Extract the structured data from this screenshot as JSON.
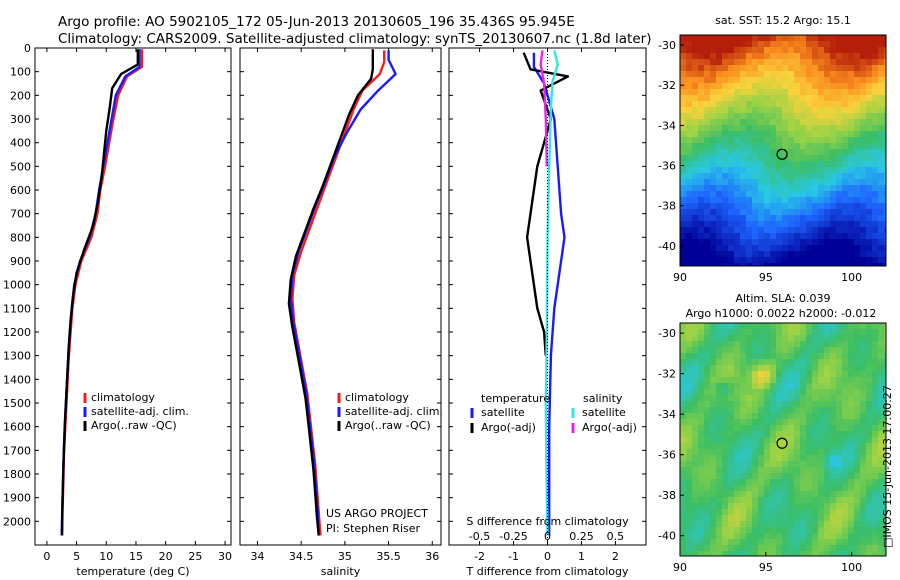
{
  "header": {
    "line1": "Argo profile: AO 5902105_172 05-Jun-2013 20130605_196 35.436S 95.945E",
    "line2": "Climatology: CARS2009. Satellite-adjusted climatology: synTS_20130607.nc (1.8d later)"
  },
  "colors": {
    "climatology": "#ff1a1a",
    "satellite": "#1a1aff",
    "argo": "#000000",
    "sal_satellite": "#33e6e6",
    "sal_argo": "#ee22ee"
  },
  "footer": {
    "project": "US ARGO PROJECT",
    "pi": "PI: Stephen Riser",
    "vertical_stamp": "□IMOS 15-Jun-2013 17:00:27"
  },
  "chart_data": [
    {
      "type": "line",
      "xlabel": "temperature (deg C)",
      "xlim": [
        -2,
        31
      ],
      "xticks": [
        0,
        5,
        10,
        15,
        20,
        25,
        30
      ],
      "ylim": [
        0,
        2100
      ],
      "yticks": [
        0,
        100,
        200,
        300,
        400,
        500,
        600,
        700,
        800,
        900,
        1000,
        1100,
        1200,
        1300,
        1400,
        1500,
        1600,
        1700,
        1800,
        1900,
        2000
      ],
      "legend": {
        "placement": "lower-center",
        "entries": [
          "climatology",
          "satellite-adj. clim.",
          "Argo(..raw -QC)"
        ]
      },
      "series": [
        {
          "name": "climatology",
          "color": "#ff1a1a",
          "points": [
            [
              16.0,
              5
            ],
            [
              16.0,
              80
            ],
            [
              13.5,
              120
            ],
            [
              12.0,
              200
            ],
            [
              11.2,
              300
            ],
            [
              10.5,
              400
            ],
            [
              9.8,
              500
            ],
            [
              9.0,
              600
            ],
            [
              8.5,
              700
            ],
            [
              7.5,
              800
            ],
            [
              5.8,
              900
            ],
            [
              4.8,
              1000
            ],
            [
              4.3,
              1100
            ],
            [
              4.0,
              1200
            ],
            [
              3.7,
              1300
            ],
            [
              3.5,
              1400
            ],
            [
              3.3,
              1500
            ],
            [
              3.1,
              1600
            ],
            [
              2.9,
              1700
            ],
            [
              2.8,
              1800
            ],
            [
              2.7,
              1900
            ],
            [
              2.6,
              2000
            ],
            [
              2.55,
              2060
            ]
          ]
        },
        {
          "name": "satellite-adj. clim.",
          "color": "#1a1aff",
          "points": [
            [
              15.6,
              5
            ],
            [
              15.6,
              80
            ],
            [
              13.2,
              120
            ],
            [
              11.6,
              200
            ],
            [
              10.9,
              300
            ],
            [
              10.2,
              400
            ],
            [
              9.5,
              500
            ],
            [
              8.8,
              600
            ],
            [
              8.2,
              700
            ],
            [
              7.2,
              800
            ],
            [
              5.6,
              900
            ],
            [
              4.6,
              1000
            ],
            [
              4.2,
              1100
            ],
            [
              3.9,
              1200
            ],
            [
              3.6,
              1300
            ],
            [
              3.4,
              1400
            ],
            [
              3.2,
              1500
            ],
            [
              3.0,
              1600
            ],
            [
              2.85,
              1700
            ],
            [
              2.75,
              1800
            ],
            [
              2.65,
              1900
            ],
            [
              2.55,
              2000
            ],
            [
              2.5,
              2060
            ]
          ]
        },
        {
          "name": "Argo(..raw -QC)",
          "color": "#000000",
          "points": [
            [
              15.3,
              5
            ],
            [
              15.3,
              70
            ],
            [
              12.5,
              110
            ],
            [
              11.0,
              170
            ],
            [
              10.6,
              250
            ],
            [
              10.0,
              350
            ],
            [
              9.6,
              450
            ],
            [
              9.2,
              550
            ],
            [
              8.6,
              650
            ],
            [
              7.8,
              750
            ],
            [
              6.3,
              850
            ],
            [
              5.0,
              950
            ],
            [
              4.4,
              1050
            ],
            [
              4.0,
              1150
            ],
            [
              3.7,
              1250
            ],
            [
              3.5,
              1350
            ],
            [
              3.3,
              1450
            ],
            [
              3.1,
              1550
            ],
            [
              2.95,
              1650
            ],
            [
              2.8,
              1750
            ],
            [
              2.7,
              1850
            ],
            [
              2.6,
              1950
            ],
            [
              2.55,
              2060
            ]
          ]
        }
      ]
    },
    {
      "type": "line",
      "xlabel": "salinity",
      "xlim": [
        33.8,
        36.1
      ],
      "xticks": [
        34,
        34.5,
        35,
        35.5,
        36
      ],
      "ylim": [
        0,
        2100
      ],
      "legend": {
        "placement": "lower-right",
        "entries": [
          "climatology",
          "satellite-adj. clim.",
          "Argo(..raw -QC)"
        ]
      },
      "series": [
        {
          "name": "climatology",
          "color": "#ff1a1a",
          "points": [
            [
              35.45,
              10
            ],
            [
              35.45,
              60
            ],
            [
              35.4,
              110
            ],
            [
              35.2,
              180
            ],
            [
              35.1,
              260
            ],
            [
              35.0,
              360
            ],
            [
              34.9,
              460
            ],
            [
              34.8,
              560
            ],
            [
              34.7,
              660
            ],
            [
              34.6,
              760
            ],
            [
              34.5,
              860
            ],
            [
              34.42,
              960
            ],
            [
              34.4,
              1060
            ],
            [
              34.42,
              1160
            ],
            [
              34.47,
              1260
            ],
            [
              34.52,
              1360
            ],
            [
              34.57,
              1460
            ],
            [
              34.6,
              1560
            ],
            [
              34.63,
              1660
            ],
            [
              34.66,
              1760
            ],
            [
              34.68,
              1860
            ],
            [
              34.7,
              1960
            ],
            [
              34.72,
              2060
            ]
          ]
        },
        {
          "name": "satellite-adj. clim.",
          "color": "#1a1aff",
          "points": [
            [
              35.5,
              10
            ],
            [
              35.5,
              50
            ],
            [
              35.58,
              110
            ],
            [
              35.38,
              180
            ],
            [
              35.18,
              260
            ],
            [
              35.02,
              360
            ],
            [
              34.88,
              460
            ],
            [
              34.78,
              560
            ],
            [
              34.67,
              660
            ],
            [
              34.57,
              760
            ],
            [
              34.47,
              860
            ],
            [
              34.4,
              960
            ],
            [
              34.38,
              1060
            ],
            [
              34.41,
              1160
            ],
            [
              34.46,
              1260
            ],
            [
              34.51,
              1360
            ],
            [
              34.56,
              1460
            ],
            [
              34.59,
              1560
            ],
            [
              34.62,
              1660
            ],
            [
              34.65,
              1760
            ],
            [
              34.67,
              1860
            ],
            [
              34.69,
              1960
            ],
            [
              34.7,
              2060
            ]
          ]
        },
        {
          "name": "Argo(..raw -QC)",
          "color": "#000000",
          "points": [
            [
              35.32,
              5
            ],
            [
              35.32,
              90
            ],
            [
              35.3,
              130
            ],
            [
              35.15,
              200
            ],
            [
              35.05,
              280
            ],
            [
              34.95,
              380
            ],
            [
              34.85,
              480
            ],
            [
              34.75,
              580
            ],
            [
              34.64,
              680
            ],
            [
              34.54,
              780
            ],
            [
              34.44,
              880
            ],
            [
              34.38,
              980
            ],
            [
              34.36,
              1080
            ],
            [
              34.4,
              1180
            ],
            [
              34.45,
              1280
            ],
            [
              34.5,
              1380
            ],
            [
              34.55,
              1480
            ],
            [
              34.58,
              1580
            ],
            [
              34.61,
              1680
            ],
            [
              34.64,
              1780
            ],
            [
              34.66,
              1880
            ],
            [
              34.68,
              1980
            ],
            [
              34.7,
              2060
            ]
          ]
        }
      ]
    },
    {
      "type": "line",
      "xlabel": "T difference from climatology",
      "xlabel2": "S difference from climatology",
      "xlim": [
        -2.9,
        2.9
      ],
      "xticks": [
        -2,
        -1,
        0,
        1,
        2
      ],
      "xticks_s": [
        -0.5,
        -0.25,
        0,
        0.25,
        0.5
      ],
      "legend": {
        "placement": "lower",
        "temperature_title": "temperature",
        "salinity_title": "salinity",
        "entries": [
          "satellite",
          "Argo(-adj)",
          "satellite",
          "Argo(-adj)"
        ]
      },
      "series": [
        {
          "name": "temperature satellite",
          "color": "#1a1aff",
          "points": [
            [
              -0.4,
              20
            ],
            [
              -0.4,
              80
            ],
            [
              -0.1,
              150
            ],
            [
              0.2,
              300
            ],
            [
              0.3,
              500
            ],
            [
              0.4,
              700
            ],
            [
              0.5,
              800
            ],
            [
              0.4,
              900
            ],
            [
              0.3,
              1000
            ],
            [
              0.2,
              1100
            ],
            [
              0.1,
              1300
            ],
            [
              0.05,
              1600
            ],
            [
              0.05,
              2000
            ],
            [
              0.05,
              2060
            ]
          ]
        },
        {
          "name": "temperature Argo(-adj)",
          "color": "#000000",
          "points": [
            [
              -0.7,
              20
            ],
            [
              -0.5,
              90
            ],
            [
              0.6,
              120
            ],
            [
              -0.2,
              180
            ],
            [
              0.1,
              300
            ],
            [
              -0.3,
              500
            ],
            [
              -0.5,
              700
            ],
            [
              -0.6,
              800
            ],
            [
              -0.5,
              900
            ],
            [
              -0.4,
              1000
            ],
            [
              -0.3,
              1100
            ],
            [
              -0.1,
              1200
            ],
            [
              -0.05,
              1300
            ]
          ]
        },
        {
          "name": "salinity satellite",
          "color": "#33e6e6",
          "points": [
            [
              0.2,
              10
            ],
            [
              0.3,
              70
            ],
            [
              0.15,
              140
            ],
            [
              0.1,
              250
            ],
            [
              0.05,
              500
            ],
            [
              0.0,
              800
            ],
            [
              -0.02,
              1200
            ],
            [
              -0.05,
              1500
            ],
            [
              -0.03,
              1800
            ],
            [
              0.0,
              2060
            ]
          ]
        },
        {
          "name": "salinity Argo(-adj)",
          "color": "#ee22ee",
          "points": [
            [
              -0.15,
              10
            ],
            [
              -0.2,
              70
            ],
            [
              -0.1,
              150
            ],
            [
              -0.05,
              300
            ],
            [
              -0.02,
              500
            ]
          ]
        }
      ]
    },
    {
      "type": "heatmap",
      "title": "sat. SST: 15.2  Argo: 15.1",
      "xlim": [
        90,
        102
      ],
      "ylim": [
        -41,
        -29.5
      ],
      "xticks": [
        90,
        95,
        100
      ],
      "yticks": [
        -30,
        -32,
        -34,
        -36,
        -38,
        -40
      ],
      "marker": {
        "lon": 95.945,
        "lat": -35.436
      }
    },
    {
      "type": "heatmap",
      "title": "Altim. SLA: 0.039",
      "subtitle": "Argo h1000: 0.0022  h2000: -0.012",
      "xlim": [
        90,
        102
      ],
      "ylim": [
        -41,
        -29.5
      ],
      "xticks": [
        90,
        95,
        100
      ],
      "yticks": [
        -30,
        -32,
        -34,
        -36,
        -38,
        -40
      ],
      "marker": {
        "lon": 95.945,
        "lat": -35.436
      }
    }
  ]
}
